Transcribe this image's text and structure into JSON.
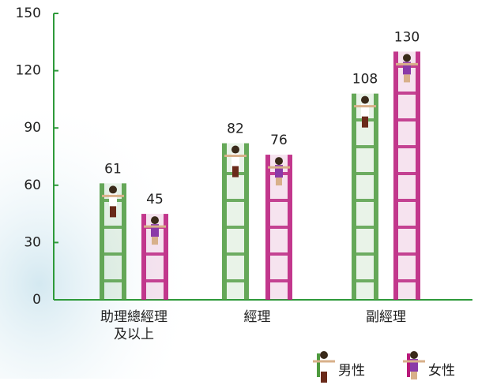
{
  "chart_data": {
    "type": "bar",
    "categories": [
      "助理總經理\n及以上",
      "經理",
      "副經理"
    ],
    "series": [
      {
        "name": "男性",
        "color": "#4e9a3e",
        "values": [
          61,
          82,
          108
        ]
      },
      {
        "name": "女性",
        "color": "#b8197a",
        "values": [
          45,
          76,
          130
        ]
      }
    ],
    "ylim": [
      0,
      150
    ],
    "yticks": [
      0,
      30,
      60,
      90,
      120,
      150
    ],
    "axis_color": "#2e9a3a"
  }
}
